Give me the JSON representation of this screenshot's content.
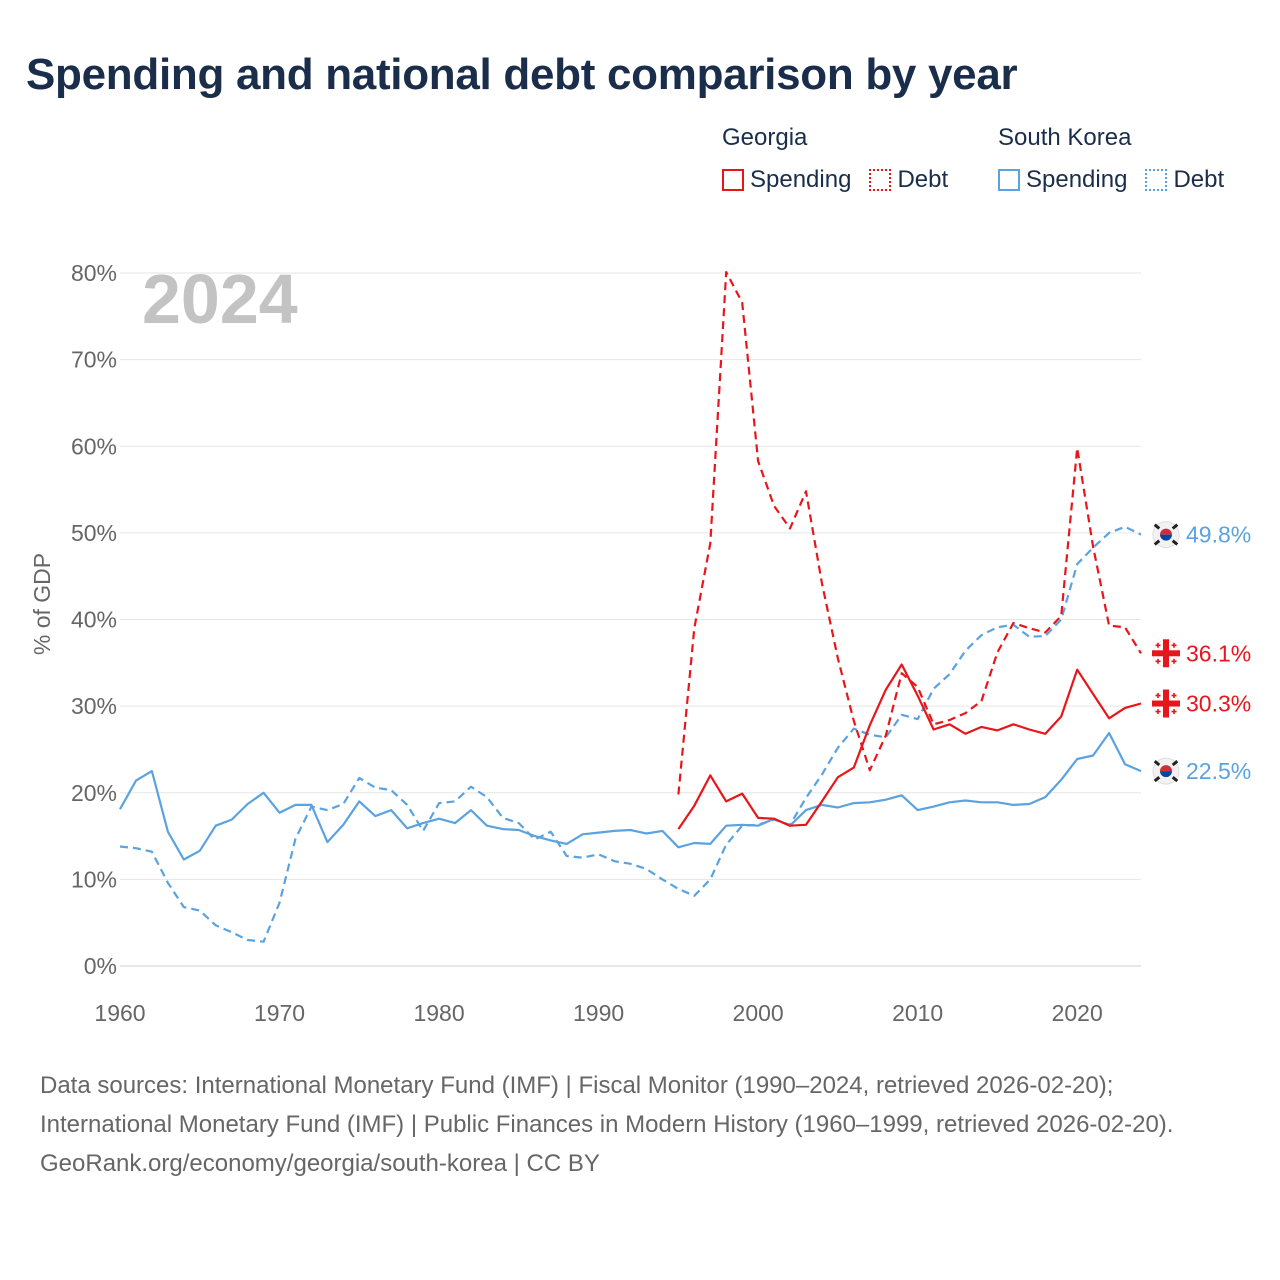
{
  "chart_data": {
    "type": "line",
    "title": "Spending and national debt comparison by year",
    "year_badge": "2024",
    "ylabel": "% of GDP",
    "xlabel": "",
    "xlim": [
      1960,
      2024
    ],
    "ylim": [
      0,
      80
    ],
    "x_ticks": [
      1960,
      1970,
      1980,
      1990,
      2000,
      2010,
      2020
    ],
    "y_ticks": [
      0,
      10,
      20,
      30,
      40,
      50,
      60,
      70,
      80
    ],
    "y_tick_labels": [
      "0%",
      "10%",
      "20%",
      "30%",
      "40%",
      "50%",
      "60%",
      "70%",
      "80%"
    ],
    "grid": true,
    "legend": [
      {
        "group": "Georgia",
        "items": [
          {
            "label": "Spending",
            "color": "#e8161b",
            "style": "solid"
          },
          {
            "label": "Debt",
            "color": "#e8161b",
            "style": "dotted"
          }
        ]
      },
      {
        "group": "South Korea",
        "items": [
          {
            "label": "Spending",
            "color": "#5aa2e0",
            "style": "solid"
          },
          {
            "label": "Debt",
            "color": "#5aa2e0",
            "style": "dotted"
          }
        ]
      }
    ],
    "series": [
      {
        "name": "Georgia Spending",
        "country": "Georgia",
        "color": "#e8161b",
        "dash": false,
        "x": [
          1995,
          1996,
          1997,
          1998,
          1999,
          2000,
          2001,
          2002,
          2003,
          2004,
          2005,
          2006,
          2007,
          2008,
          2009,
          2010,
          2011,
          2012,
          2013,
          2014,
          2015,
          2016,
          2017,
          2018,
          2019,
          2020,
          2021,
          2022,
          2023,
          2024
        ],
        "values": [
          15.8,
          18.5,
          22.0,
          19.0,
          19.9,
          17.1,
          17.0,
          16.2,
          16.3,
          19.0,
          21.8,
          22.9,
          27.8,
          31.9,
          34.8,
          31.2,
          27.3,
          27.9,
          26.8,
          27.6,
          27.2,
          27.9,
          27.3,
          26.8,
          28.8,
          34.2,
          31.4,
          28.6,
          29.8,
          30.3
        ],
        "end_label": "30.3%"
      },
      {
        "name": "Georgia Debt",
        "country": "Georgia",
        "color": "#e8161b",
        "dash": true,
        "x": [
          1995,
          1996,
          1997,
          1998,
          1999,
          2000,
          2001,
          2002,
          2003,
          2004,
          2005,
          2006,
          2007,
          2008,
          2009,
          2010,
          2011,
          2012,
          2013,
          2014,
          2015,
          2016,
          2017,
          2018,
          2019,
          2020,
          2021,
          2022,
          2023,
          2024
        ],
        "values": [
          19.8,
          39.0,
          48.8,
          80.1,
          76.6,
          58.3,
          53.1,
          50.5,
          54.8,
          44.2,
          35.5,
          28.3,
          22.6,
          26.6,
          33.8,
          32.2,
          27.9,
          28.4,
          29.2,
          30.6,
          36.2,
          39.6,
          39.0,
          38.5,
          40.4,
          59.8,
          48.4,
          39.3,
          39.1,
          36.1
        ],
        "end_label": "36.1%"
      },
      {
        "name": "South Korea Spending",
        "country": "South Korea",
        "color": "#5aa2e0",
        "dash": false,
        "x": [
          1960,
          1961,
          1962,
          1963,
          1964,
          1965,
          1966,
          1967,
          1968,
          1969,
          1970,
          1971,
          1972,
          1973,
          1974,
          1975,
          1976,
          1977,
          1978,
          1979,
          1980,
          1981,
          1982,
          1983,
          1984,
          1985,
          1986,
          1987,
          1988,
          1989,
          1990,
          1991,
          1992,
          1993,
          1994,
          1995,
          1996,
          1997,
          1998,
          1999,
          2000,
          2001,
          2002,
          2003,
          2004,
          2005,
          2006,
          2007,
          2008,
          2009,
          2010,
          2011,
          2012,
          2013,
          2014,
          2015,
          2016,
          2017,
          2018,
          2019,
          2020,
          2021,
          2022,
          2023,
          2024
        ],
        "values": [
          18.1,
          21.4,
          22.5,
          15.5,
          12.3,
          13.3,
          16.2,
          16.9,
          18.7,
          20.0,
          17.7,
          18.6,
          18.6,
          14.3,
          16.3,
          19.0,
          17.3,
          18.0,
          15.9,
          16.5,
          17.0,
          16.5,
          18.0,
          16.2,
          15.8,
          15.7,
          15.0,
          14.5,
          14.1,
          15.2,
          15.4,
          15.6,
          15.7,
          15.3,
          15.6,
          13.7,
          14.2,
          14.1,
          16.2,
          16.3,
          16.2,
          17.0,
          16.2,
          18.0,
          18.6,
          18.3,
          18.8,
          18.9,
          19.2,
          19.7,
          18.0,
          18.4,
          18.9,
          19.1,
          18.9,
          18.9,
          18.6,
          18.7,
          19.5,
          21.5,
          23.9,
          24.3,
          26.9,
          23.3,
          22.5
        ],
        "end_label": "22.5%"
      },
      {
        "name": "South Korea Debt",
        "country": "South Korea",
        "color": "#5aa2e0",
        "dash": true,
        "x": [
          1960,
          1961,
          1962,
          1963,
          1964,
          1965,
          1966,
          1967,
          1968,
          1969,
          1970,
          1971,
          1972,
          1973,
          1974,
          1975,
          1976,
          1977,
          1978,
          1979,
          1980,
          1981,
          1982,
          1983,
          1984,
          1985,
          1986,
          1987,
          1988,
          1989,
          1990,
          1991,
          1992,
          1993,
          1994,
          1995,
          1996,
          1997,
          1998,
          1999,
          2000,
          2001,
          2002,
          2003,
          2004,
          2005,
          2006,
          2007,
          2008,
          2009,
          2010,
          2011,
          2012,
          2013,
          2014,
          2015,
          2016,
          2017,
          2018,
          2019,
          2020,
          2021,
          2022,
          2023,
          2024
        ],
        "values": [
          13.8,
          13.6,
          13.2,
          9.6,
          6.8,
          6.4,
          4.7,
          3.9,
          3.0,
          2.8,
          7.3,
          14.7,
          18.4,
          18.0,
          18.7,
          21.7,
          20.6,
          20.3,
          18.6,
          15.6,
          18.8,
          19.0,
          20.7,
          19.5,
          17.1,
          16.5,
          14.6,
          15.5,
          12.7,
          12.5,
          12.9,
          12.1,
          11.8,
          11.2,
          10.0,
          8.9,
          8.1,
          10.0,
          14.0,
          16.2,
          16.3,
          16.9,
          16.3,
          19.4,
          22.1,
          25.2,
          27.4,
          26.7,
          26.4,
          29.0,
          28.5,
          32.0,
          33.7,
          36.4,
          38.2,
          39.1,
          39.4,
          38.0,
          38.1,
          40.0,
          46.4,
          48.3,
          50.0,
          50.7,
          49.8
        ],
        "end_label": "49.8%"
      }
    ]
  },
  "footer": {
    "sources": "Data sources: International Monetary Fund (IMF) | Fiscal Monitor (1990–2024, retrieved 2026-02-20); International Monetary Fund (IMF) | Public Finances in Modern History (1960–1999, retrieved 2026-02-20).",
    "credit": "GeoRank.org/economy/georgia/south-korea | CC BY"
  }
}
